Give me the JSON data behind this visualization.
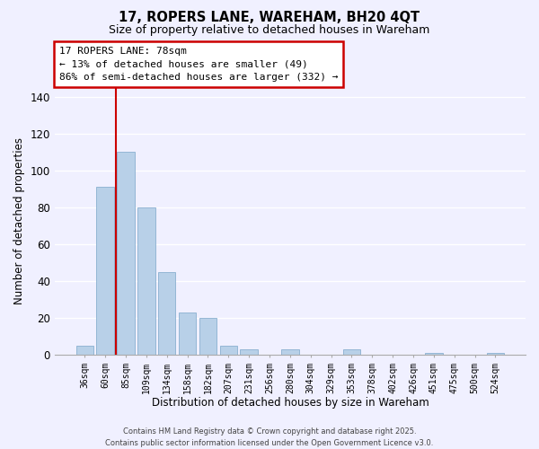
{
  "title": "17, ROPERS LANE, WAREHAM, BH20 4QT",
  "subtitle": "Size of property relative to detached houses in Wareham",
  "xlabel": "Distribution of detached houses by size in Wareham",
  "ylabel": "Number of detached properties",
  "bar_color": "#b8d0e8",
  "bar_edge_color": "#8ab0d0",
  "categories": [
    "36sqm",
    "60sqm",
    "85sqm",
    "109sqm",
    "134sqm",
    "158sqm",
    "182sqm",
    "207sqm",
    "231sqm",
    "256sqm",
    "280sqm",
    "304sqm",
    "329sqm",
    "353sqm",
    "378sqm",
    "402sqm",
    "426sqm",
    "451sqm",
    "475sqm",
    "500sqm",
    "524sqm"
  ],
  "values": [
    5,
    91,
    110,
    80,
    45,
    23,
    20,
    5,
    3,
    0,
    3,
    0,
    0,
    3,
    0,
    0,
    0,
    1,
    0,
    0,
    1
  ],
  "ylim": [
    0,
    145
  ],
  "yticks": [
    0,
    20,
    40,
    60,
    80,
    100,
    120,
    140
  ],
  "vline_index": 1.5,
  "vline_color": "#cc0000",
  "annotation_title": "17 ROPERS LANE: 78sqm",
  "annotation_line1": "← 13% of detached houses are smaller (49)",
  "annotation_line2": "86% of semi-detached houses are larger (332) →",
  "footer1": "Contains HM Land Registry data © Crown copyright and database right 2025.",
  "footer2": "Contains public sector information licensed under the Open Government Licence v3.0.",
  "background_color": "#f0f0ff",
  "grid_color": "#ffffff"
}
